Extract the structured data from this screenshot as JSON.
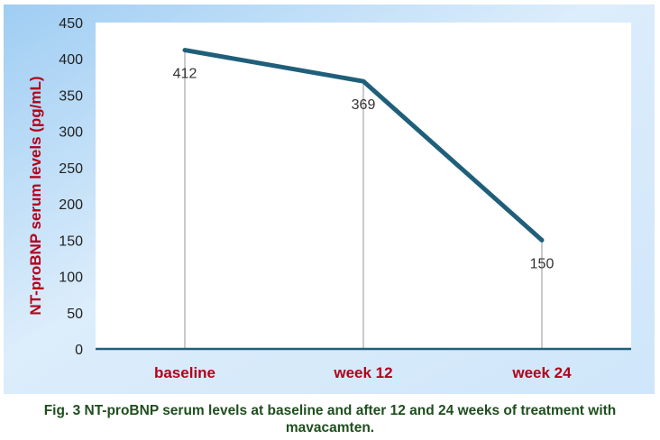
{
  "chart_data": {
    "type": "line",
    "categories": [
      "baseline",
      "week 12",
      "week 24"
    ],
    "values": [
      412,
      369,
      150
    ],
    "data_labels": [
      "412",
      "369",
      "150"
    ],
    "ylabel": "NT-proBNP serum levels (pg/mL)",
    "xlabel": "",
    "ylim": [
      0,
      450
    ],
    "y_ticks": [
      0,
      50,
      100,
      150,
      200,
      250,
      300,
      350,
      400,
      450
    ],
    "grid": "vertical drop lines at categories",
    "legend": "none",
    "colors": {
      "line": "#1f5f7a",
      "category_labels": "#b3001b",
      "axis_title": "#b3001b",
      "background_gradient_start": "#9fcdf3",
      "background_gradient_end": "#eaf5fd",
      "plot_area": "#ffffff"
    }
  },
  "caption": {
    "line1": "Fig. 3 NT-proBNP serum levels at baseline and after 12 and 24 weeks of treatment with",
    "line2": "mavacamten."
  }
}
